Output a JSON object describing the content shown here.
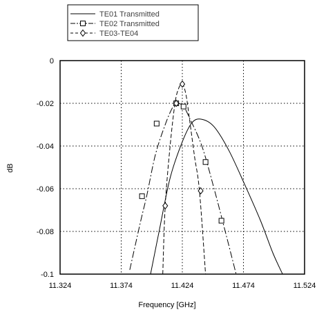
{
  "chart_data": {
    "type": "line",
    "xlabel": "Frequency [GHz]",
    "ylabel": "dB",
    "xlim": [
      11.324,
      11.524
    ],
    "ylim": [
      -0.1,
      0
    ],
    "x_ticks": [
      "11.324",
      "11.374",
      "11.424",
      "11.474",
      "11.524"
    ],
    "y_ticks": [
      "0",
      "-0.02",
      "-0.04",
      "-0.06",
      "-0.08",
      "-0.1"
    ],
    "grid": "dotted",
    "legend_position": "top-left",
    "series": [
      {
        "name": "TE01 Transmitted",
        "line_style": "solid",
        "marker": "none",
        "color": "#000000",
        "x": [
          11.398,
          11.405,
          11.414,
          11.424,
          11.432,
          11.44,
          11.45,
          11.462,
          11.475,
          11.488,
          11.498,
          11.506
        ],
        "y": [
          -0.1,
          -0.08,
          -0.055,
          -0.038,
          -0.029,
          -0.0275,
          -0.031,
          -0.042,
          -0.058,
          -0.075,
          -0.09,
          -0.1
        ]
      },
      {
        "name": "TE02 Transmitted",
        "line_style": "dash-dot",
        "marker": "square",
        "color": "#000000",
        "x": [
          11.381,
          11.39,
          11.395,
          11.402,
          11.41,
          11.416,
          11.42,
          11.425,
          11.43,
          11.44,
          11.45,
          11.46,
          11.468
        ],
        "y": [
          -0.098,
          -0.075,
          -0.063,
          -0.044,
          -0.03,
          -0.022,
          -0.02,
          -0.0215,
          -0.027,
          -0.04,
          -0.06,
          -0.082,
          -0.1
        ],
        "marker_x": [
          11.391,
          11.403,
          11.419,
          11.425,
          11.443,
          11.456
        ],
        "marker_y": [
          -0.0635,
          -0.0295,
          -0.02,
          -0.0215,
          -0.0475,
          -0.075
        ]
      },
      {
        "name": "TE03-TE04",
        "line_style": "dashed",
        "marker": "diamond",
        "color": "#000000",
        "x": [
          11.408,
          11.41,
          11.414,
          11.418,
          11.421,
          11.424,
          11.427,
          11.43,
          11.434,
          11.438,
          11.443
        ],
        "y": [
          -0.1,
          -0.068,
          -0.04,
          -0.02,
          -0.013,
          -0.011,
          -0.016,
          -0.028,
          -0.045,
          -0.061,
          -0.1
        ],
        "marker_x": [
          11.41,
          11.419,
          11.424,
          11.439
        ],
        "marker_y": [
          -0.068,
          -0.02,
          -0.011,
          -0.061
        ]
      }
    ]
  }
}
